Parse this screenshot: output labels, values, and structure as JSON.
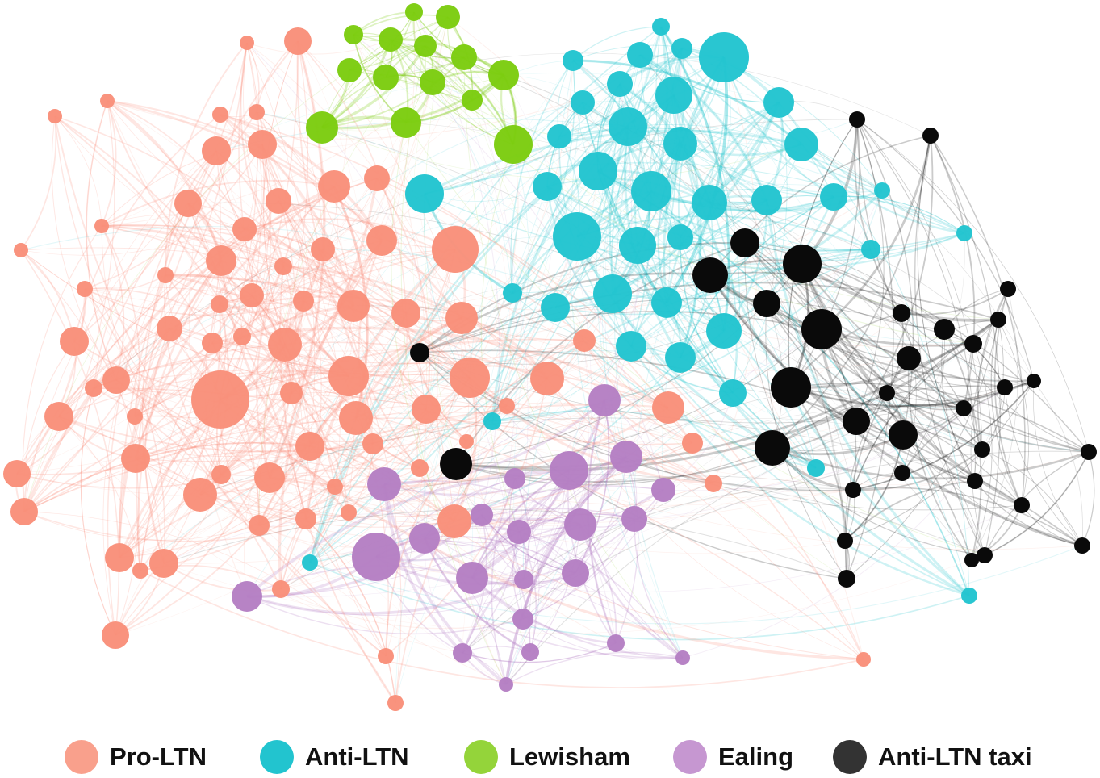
{
  "legend": [
    {
      "id": "pro",
      "label": "Pro-LTN",
      "color": "#f98f7a"
    },
    {
      "id": "anti",
      "label": "Anti-LTN",
      "color": "#22c4cf"
    },
    {
      "id": "lew",
      "label": "Lewisham",
      "color": "#7ccc10"
    },
    {
      "id": "eal",
      "label": "Ealing",
      "color": "#b57fc3"
    },
    {
      "id": "taxi",
      "label": "Anti-LTN taxi",
      "color": "#0a0a0a"
    }
  ]
}
